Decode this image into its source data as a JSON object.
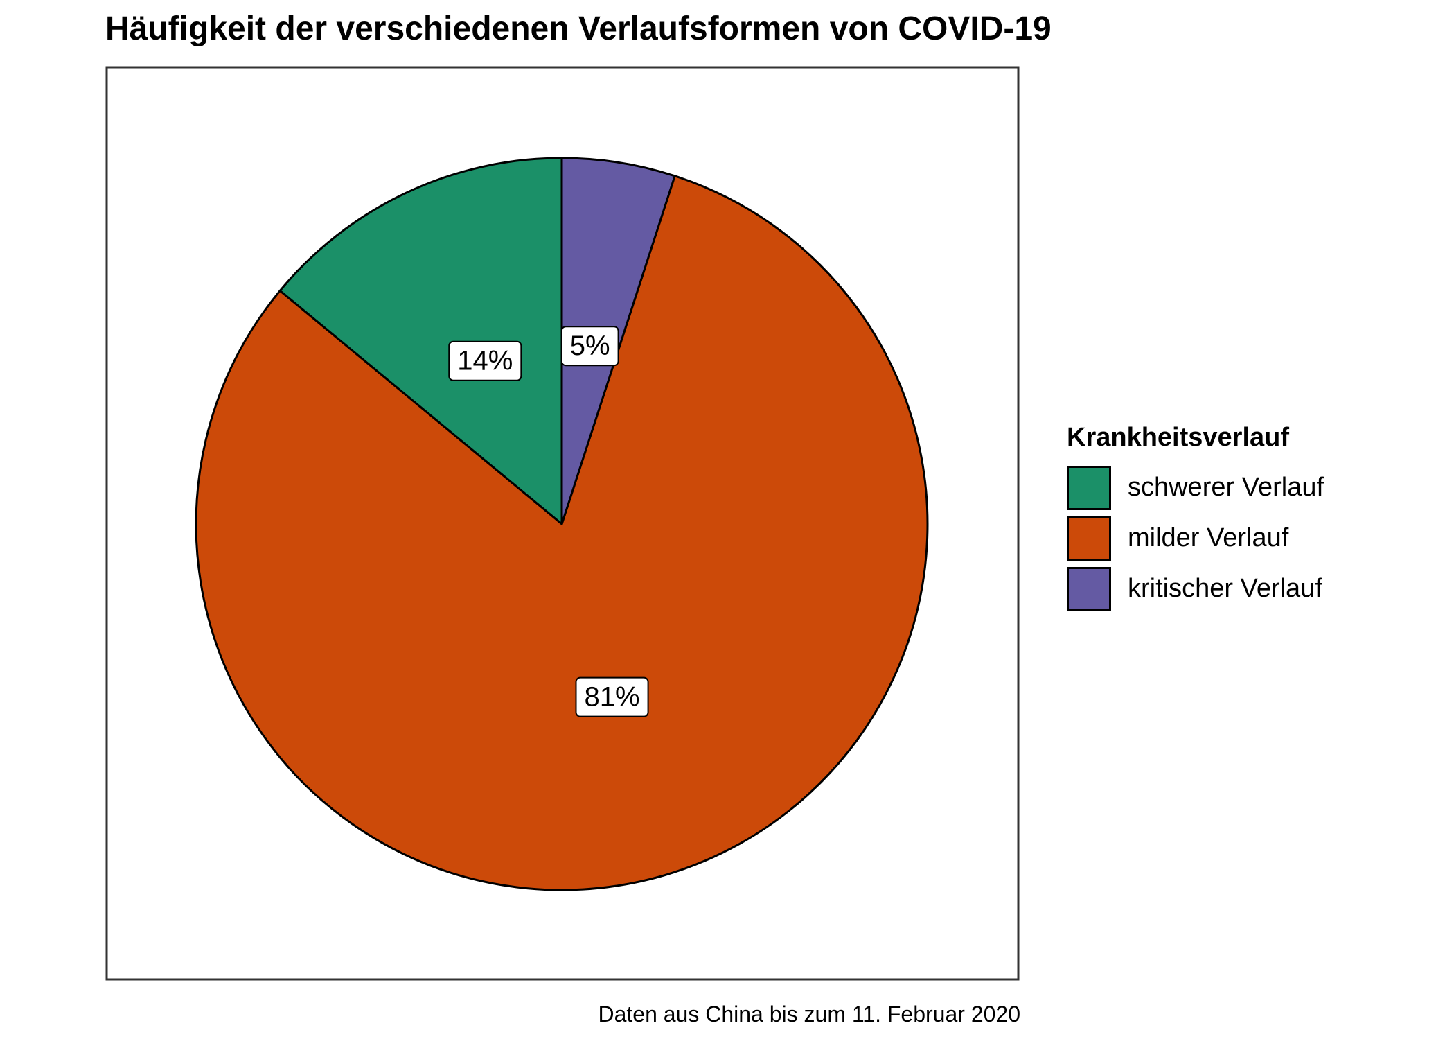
{
  "title": "Häufigkeit der verschiedenen Verlaufsformen von COVID-19",
  "caption": "Daten aus China bis zum 11. Februar 2020",
  "chart_data": {
    "type": "pie",
    "title": "Häufigkeit der verschiedenen Verlaufsformen von COVID-19",
    "legend_title": "Krankheitsverlauf",
    "legend_position": "right",
    "start_angle_deg": 0,
    "direction": "counterclockwise",
    "slices": [
      {
        "name": "schwerer Verlauf",
        "value": 14,
        "label": "14%",
        "color": "#1b9068"
      },
      {
        "name": "milder Verlauf",
        "value": 81,
        "label": "81%",
        "color": "#cc4a09"
      },
      {
        "name": "kritischer Verlauf",
        "value": 5,
        "label": "5%",
        "color": "#645aa3"
      }
    ]
  }
}
